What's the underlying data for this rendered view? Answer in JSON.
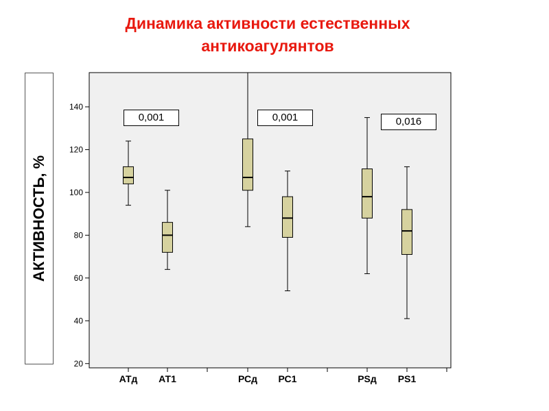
{
  "title_line1": "Динамика активности естественных",
  "title_line2": "антикоагулянтов",
  "colors": {
    "title": "#e8190f",
    "box_fill": "#d6d29f",
    "plot_bg": "#f0f0f0"
  },
  "chart_data": {
    "type": "box",
    "ylabel": "АКТИВНОСТЬ, %",
    "ylim": [
      18,
      156
    ],
    "yticks": [
      20,
      40,
      60,
      80,
      100,
      120,
      140
    ],
    "categories": [
      "АТд",
      "АТ1",
      "РСд",
      "РС1",
      "PSд",
      "PS1"
    ],
    "boxes": [
      {
        "name": "АТд",
        "min": 94,
        "q1": 104,
        "median": 107,
        "q3": 112,
        "max": 124
      },
      {
        "name": "АТ1",
        "min": 64,
        "q1": 72,
        "median": 80,
        "q3": 86,
        "max": 101
      },
      {
        "name": "РСд",
        "min": 84,
        "q1": 101,
        "median": 107,
        "q3": 125,
        "max": 156
      },
      {
        "name": "РС1",
        "min": 54,
        "q1": 79,
        "median": 88,
        "q3": 98,
        "max": 110
      },
      {
        "name": "PSд",
        "min": 62,
        "q1": 88,
        "median": 98,
        "q3": 111,
        "max": 135
      },
      {
        "name": "PS1",
        "min": 41,
        "q1": 71,
        "median": 82,
        "q3": 92,
        "max": 112
      }
    ],
    "p_values": [
      {
        "label": "0,001"
      },
      {
        "label": "0,001"
      },
      {
        "label": "0,016"
      }
    ]
  }
}
